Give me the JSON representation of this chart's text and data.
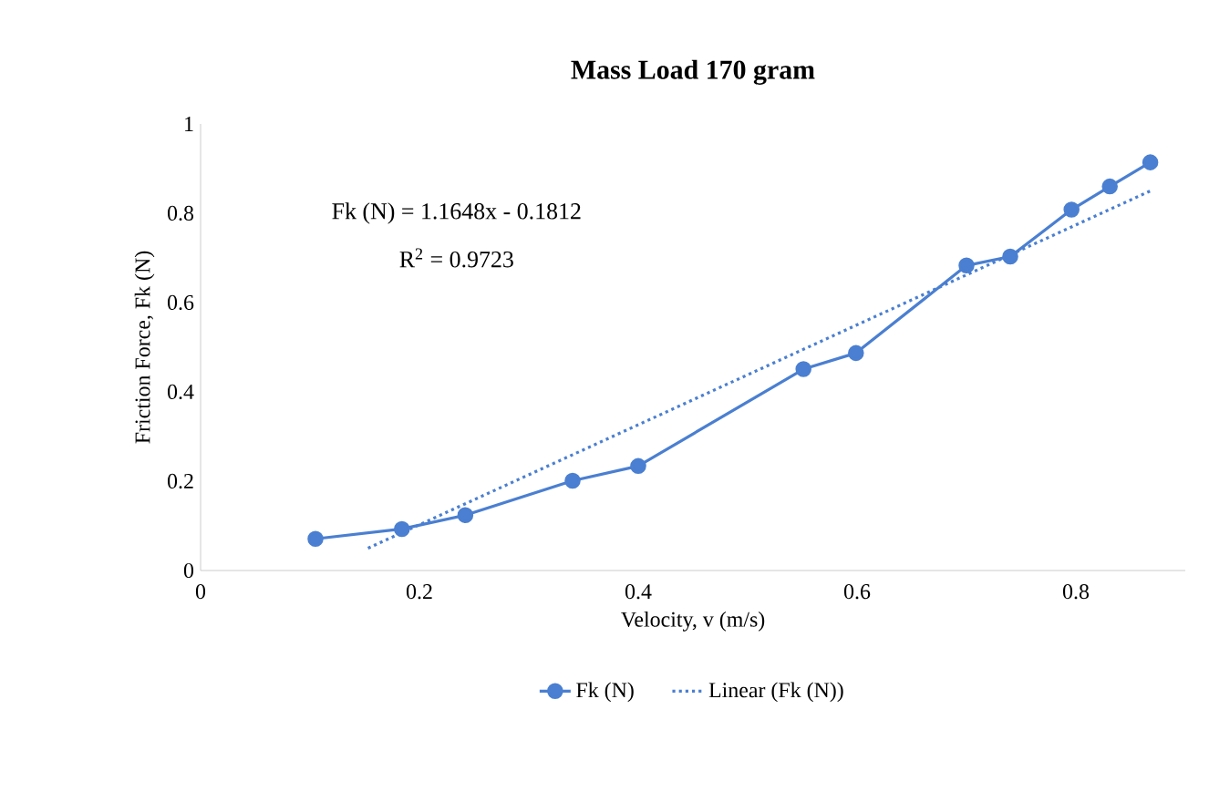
{
  "chart_data": {
    "type": "line",
    "title": "Mass Load 170 gram",
    "xlabel": "Velocity, v (m/s)",
    "ylabel": "Friction Force, Fk (N)",
    "annotations": [
      "Fk (N) = 1.1648x - 0.1812",
      "R$^{2}$ = 0.9723"
    ],
    "xlim": [
      0,
      0.9
    ],
    "xticks": [
      0,
      0.2,
      0.4,
      0.6,
      0.8
    ],
    "ylim": [
      0,
      1
    ],
    "yticks": [
      0,
      0.2,
      0.4,
      0.6,
      0.8,
      1
    ],
    "grid": false,
    "legend": "bottom",
    "series": [
      {
        "name": "Fk (N)",
        "color": "#4a7fd1",
        "marker": "circle",
        "line_style": "solid",
        "x": [
          0.105,
          0.184,
          0.242,
          0.34,
          0.4,
          0.551,
          0.599,
          0.7,
          0.74,
          0.796,
          0.831,
          0.868
        ],
        "values": [
          0.071,
          0.093,
          0.124,
          0.201,
          0.234,
          0.451,
          0.487,
          0.683,
          0.703,
          0.808,
          0.86,
          0.914
        ]
      },
      {
        "name": "Linear (Fk (N))",
        "color": "#4a7fd1",
        "marker": "none",
        "line_style": "dotted",
        "x": [
          0.153,
          0.868
        ],
        "values": [
          0.05,
          0.85
        ]
      }
    ]
  }
}
